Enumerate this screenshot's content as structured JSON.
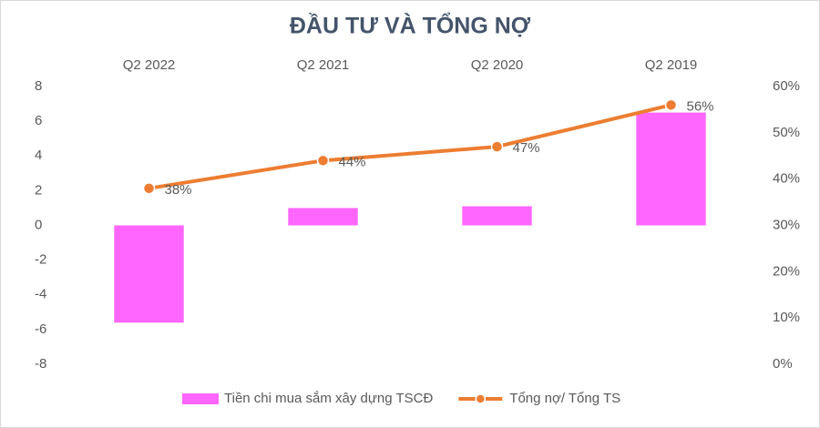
{
  "chart_data": {
    "type": "bar-line",
    "title": "ĐẦU TƯ VÀ TỔNG NỢ",
    "categories": [
      "Q2 2022",
      "Q2 2021",
      "Q2 2020",
      "Q2 2019"
    ],
    "series": [
      {
        "name": "Tiền chi mua sắm xây dựng TSCĐ",
        "type": "bar",
        "color": "#ff66ff",
        "values": [
          -5.6,
          1.0,
          1.1,
          6.5
        ]
      },
      {
        "name": "Tổng nợ/ Tổng TS",
        "type": "line",
        "axis": "y2",
        "color": "#ed7d31",
        "values": [
          38,
          44,
          47,
          56
        ],
        "value_labels": [
          "38%",
          "44%",
          "47%",
          "56%"
        ]
      }
    ],
    "ylim": [
      -8,
      8
    ],
    "yticks": [
      -8,
      -6,
      -4,
      -2,
      0,
      2,
      4,
      6,
      8
    ],
    "y2lim": [
      0,
      60
    ],
    "y2ticks": [
      {
        "value": 0,
        "label": "0%"
      },
      {
        "value": 10,
        "label": "10%"
      },
      {
        "value": 20,
        "label": "20%"
      },
      {
        "value": 30,
        "label": "30%"
      },
      {
        "value": 40,
        "label": "40%"
      },
      {
        "value": 50,
        "label": "50%"
      },
      {
        "value": 60,
        "label": "60%"
      }
    ],
    "grid": false,
    "legend": "bottom"
  }
}
